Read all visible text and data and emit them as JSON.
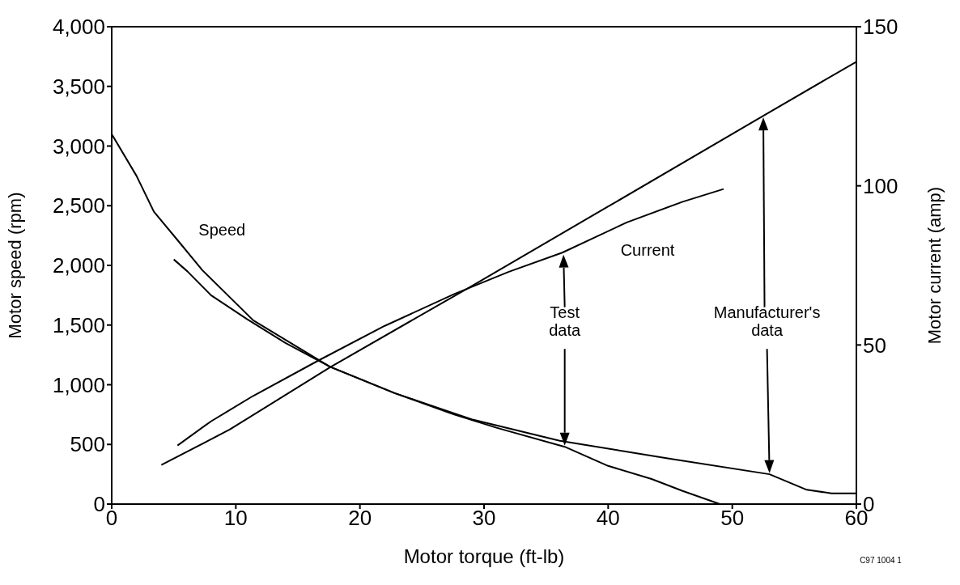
{
  "chart_data": {
    "type": "line",
    "xlabel": "Motor torque (ft-lb)",
    "ylabel": "Motor speed (rpm)",
    "y2label": "Motor current (amp)",
    "xlim": [
      0,
      60
    ],
    "xticks": [
      0,
      10,
      20,
      30,
      40,
      50,
      60
    ],
    "ylim": [
      0,
      4000
    ],
    "yticks": [
      0,
      500,
      {
        "value": 1000,
        "label": "1,000"
      },
      {
        "value": 1500,
        "label": "1,500"
      },
      {
        "value": 2000,
        "label": "2,000"
      },
      {
        "value": 2500,
        "label": "2,500"
      },
      {
        "value": 3000,
        "label": "3,000"
      },
      {
        "value": 3500,
        "label": "3,500"
      },
      {
        "value": 4000,
        "label": "4,000"
      }
    ],
    "y2lim": [
      0,
      150
    ],
    "y2ticks": [
      0,
      50,
      100,
      150
    ],
    "marker": "none",
    "line_style": "solid",
    "series": [
      {
        "color": "#000000",
        "x": [
          0,
          2,
          3.4,
          5.4,
          7.3,
          11.4,
          17.6,
          22.8,
          27.6,
          29,
          36.1,
          45,
          53,
          56,
          58,
          60
        ],
        "values": [
          3100,
          2750,
          2450,
          2200,
          1960,
          1540,
          1150,
          930,
          760,
          710,
          530,
          380,
          250,
          120,
          90,
          90
        ]
      },
      {
        "color": "#000000",
        "x": [
          5,
          6.1,
          8,
          10.9,
          14,
          17.6,
          22.8,
          27.6,
          31,
          36.5,
          40,
          43.5,
          46,
          49
        ],
        "values": [
          2050,
          1950,
          1750,
          1550,
          1350,
          1150,
          930,
          750,
          640,
          480,
          320,
          210,
          110,
          0
        ]
      },
      {
        "color": "#000000",
        "axis": "y2",
        "x": [
          4,
          9.5,
          17.6,
          29,
          40,
          52.5,
          60
        ],
        "values": [
          12.3,
          23.4,
          43,
          68.5,
          93.5,
          122,
          139
        ]
      },
      {
        "color": "#000000",
        "axis": "y2",
        "x": [
          5.3,
          8,
          11.4,
          16.6,
          22,
          27.6,
          32,
          36.3,
          41.5,
          46,
          49.3
        ],
        "values": [
          18.4,
          26,
          34,
          45,
          56,
          66,
          73,
          79,
          88.5,
          95,
          99
        ]
      }
    ],
    "annotations": [
      "Speed",
      "Current",
      "Test data",
      "Manufacturer's data",
      "C97 1004 1"
    ]
  }
}
